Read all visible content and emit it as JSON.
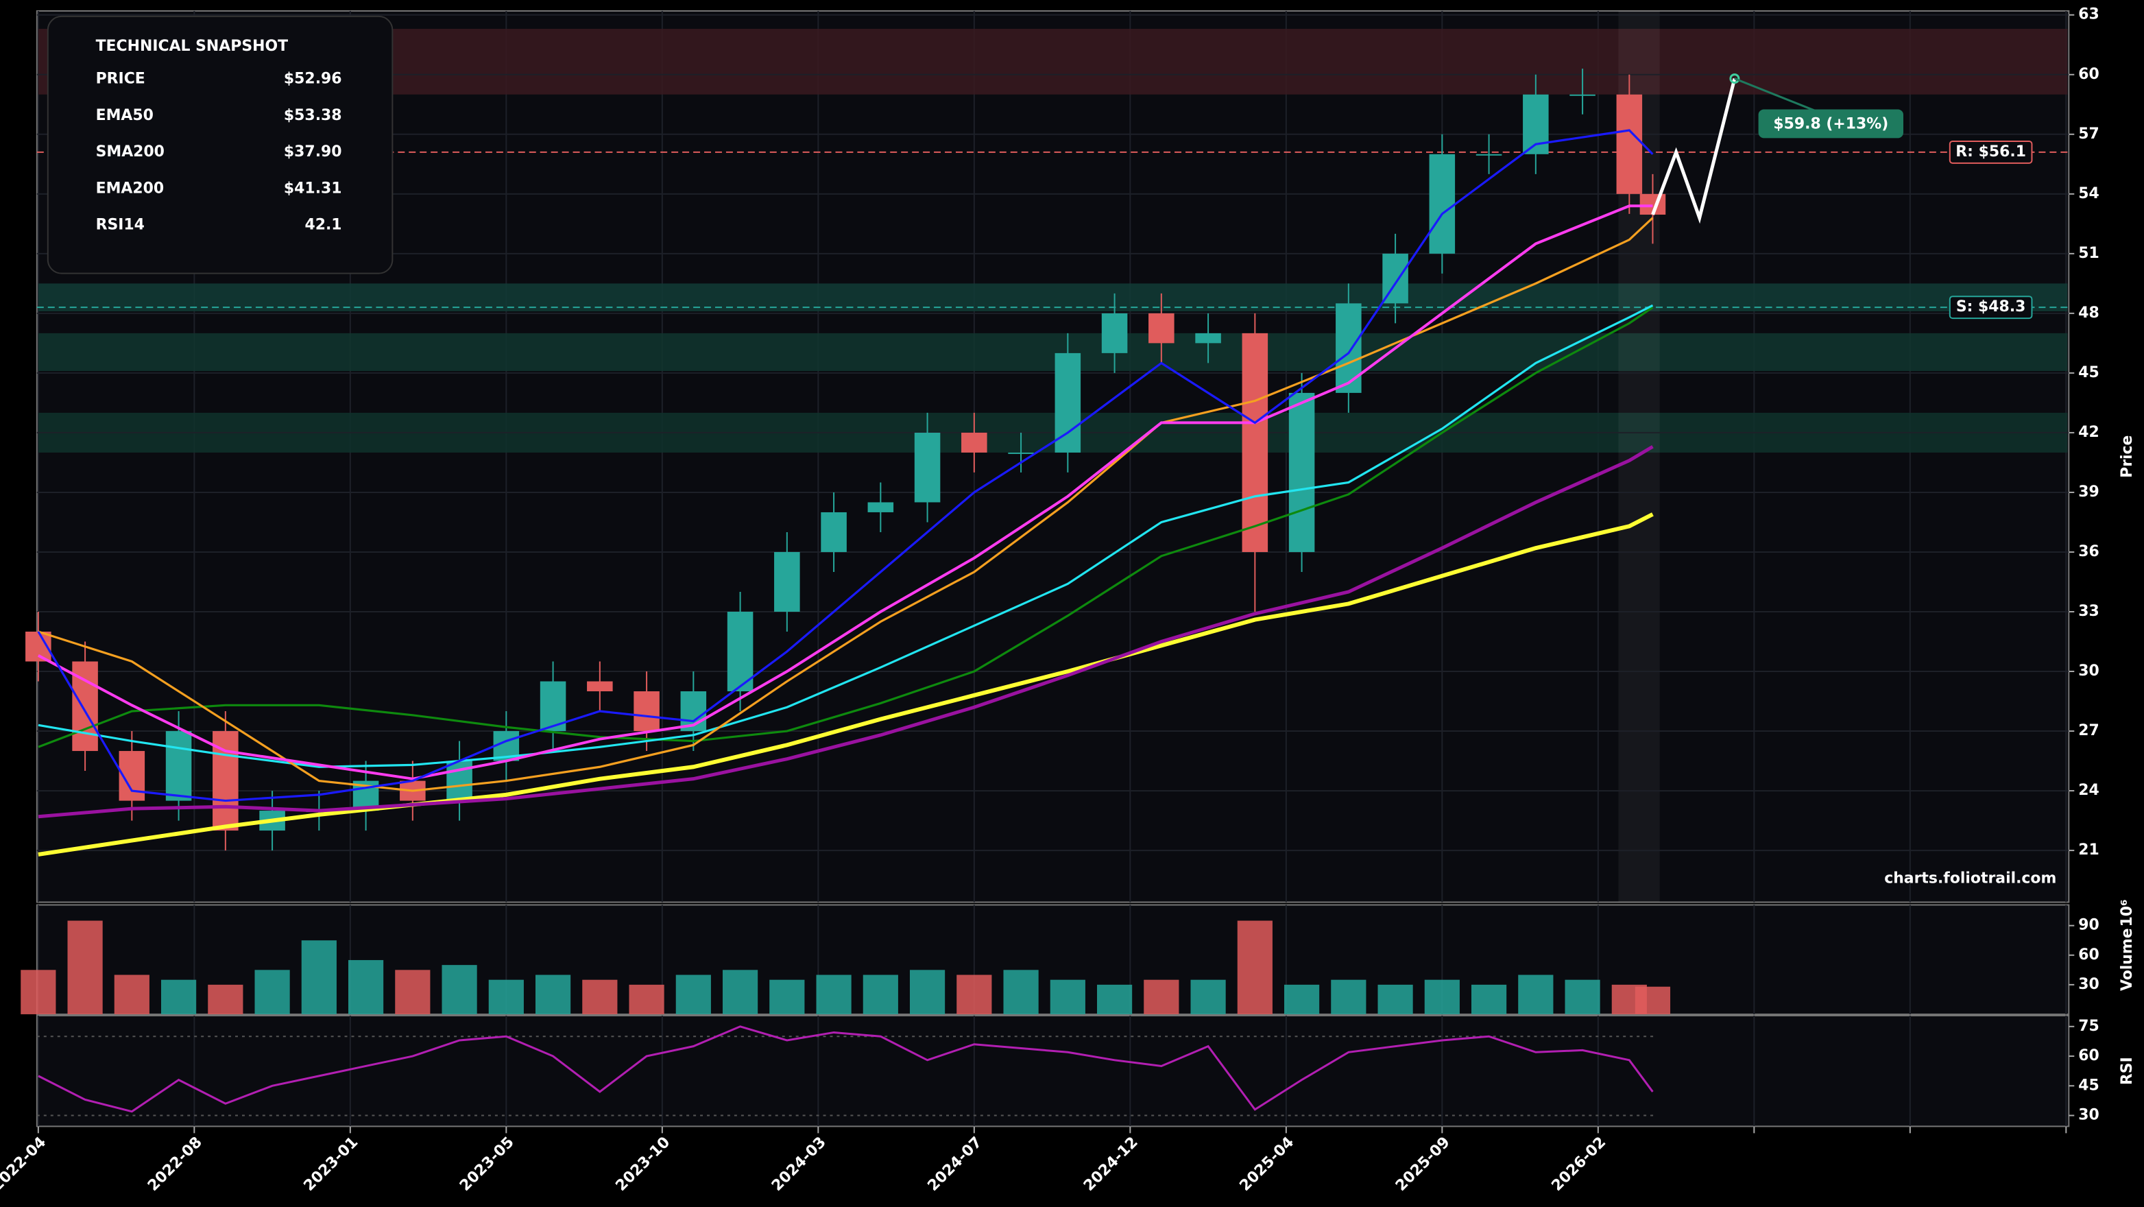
{
  "snapshot": {
    "title": "TECHNICAL SNAPSHOT",
    "rows": [
      {
        "label": "PRICE",
        "value": "$52.96",
        "color": "#ffffff"
      },
      {
        "label": "EMA50",
        "value": "$53.38",
        "color": "#ff3cf0"
      },
      {
        "label": "SMA200",
        "value": "$37.90",
        "color": "#ffff33"
      },
      {
        "label": "EMA200",
        "value": "$41.31",
        "color": "#b21fb2"
      },
      {
        "label": "RSI14",
        "value": "42.1",
        "color": "#b21fb2"
      }
    ]
  },
  "chart_data": [
    {
      "type": "candlestick",
      "ylabel": "Price",
      "watermark": "charts.foliotrail.com",
      "xlim": [
        -0.175,
        260.35
      ],
      "ylim": [
        18.4,
        63.2
      ],
      "yticks": [
        21,
        24,
        27,
        30,
        33,
        36,
        39,
        42,
        45,
        48,
        51,
        54,
        57,
        60,
        63
      ],
      "xticks": [
        0,
        20,
        40,
        60,
        80,
        100,
        120,
        140,
        160,
        180,
        200,
        220,
        240,
        260
      ],
      "up_color": "#26a69a",
      "down_color": "#e05c5c",
      "highlight": [
        202.6,
        207.9
      ],
      "x": [
        0,
        6,
        12,
        18,
        24,
        30,
        36,
        42,
        48,
        54,
        60,
        66,
        72,
        78,
        84,
        90,
        96,
        102,
        108,
        114,
        120,
        126,
        132,
        138,
        144,
        150,
        156,
        162,
        168,
        174,
        180,
        186,
        192,
        198,
        204,
        207
      ],
      "open": [
        32,
        30.5,
        26,
        23.5,
        27,
        22,
        23,
        23,
        24.5,
        23.5,
        25.5,
        27,
        29.5,
        29,
        27,
        29,
        33,
        36,
        38,
        38.5,
        42,
        41,
        41,
        46,
        48,
        46.5,
        47,
        36,
        44,
        48.5,
        51,
        56,
        56,
        59,
        59,
        54
      ],
      "high": [
        33,
        31.5,
        27,
        28,
        28,
        24,
        24,
        25.5,
        25.5,
        26.5,
        28,
        30.5,
        30.5,
        30,
        30,
        34,
        37,
        39,
        39.5,
        43,
        43,
        42,
        47,
        49,
        49,
        48,
        48,
        45,
        49.5,
        52,
        57,
        57,
        60,
        60.3,
        60,
        55
      ],
      "low": [
        29.5,
        25,
        22.5,
        22.5,
        21,
        21,
        22,
        22,
        22.5,
        22.5,
        24.5,
        26,
        28,
        26,
        26,
        28,
        32,
        35,
        37,
        37.5,
        40,
        40,
        40,
        45,
        45.5,
        45.5,
        33,
        35,
        43,
        47.5,
        50,
        55,
        55,
        58,
        53,
        51.5
      ],
      "close": [
        30.5,
        26,
        23.5,
        27,
        22,
        23,
        23,
        24.5,
        23.5,
        25.5,
        27,
        29.5,
        29,
        27,
        29,
        33,
        36,
        38,
        38.5,
        42,
        41,
        41,
        46,
        48,
        46.5,
        47,
        36,
        44,
        48.5,
        51,
        56,
        56,
        59,
        59,
        54,
        52.96
      ],
      "zones": [
        {
          "range": [
            59.0,
            62.3
          ],
          "color": "#3a1a20"
        },
        {
          "range": [
            48.1,
            49.5
          ],
          "color": "#123c36"
        },
        {
          "range": [
            45.1,
            47.0
          ],
          "color": "#10362f"
        },
        {
          "range": [
            41.0,
            43.0
          ],
          "color": "#0f332c"
        }
      ],
      "levels": [
        {
          "value": 56.1,
          "label": "R: $56.1",
          "color": "#e05c5c"
        },
        {
          "value": 48.3,
          "label": "S: $48.3",
          "color": "#26a69a"
        }
      ],
      "lines": [
        {
          "color": "#ffff33",
          "width": 3,
          "x": [
            0,
            12,
            24,
            36,
            48,
            60,
            72,
            84,
            96,
            108,
            120,
            132,
            144,
            156,
            168,
            180,
            192,
            204,
            207
          ],
          "values": [
            20.8,
            21.5,
            22.2,
            22.8,
            23.3,
            23.8,
            24.6,
            25.2,
            26.3,
            27.6,
            28.8,
            30,
            31.3,
            32.6,
            33.4,
            34.8,
            36.2,
            37.3,
            37.9
          ]
        },
        {
          "color": "#9a12a0",
          "width": 2.5,
          "x": [
            0,
            12,
            24,
            36,
            48,
            60,
            72,
            84,
            96,
            108,
            120,
            132,
            144,
            156,
            168,
            180,
            192,
            204,
            207
          ],
          "values": [
            22.7,
            23.1,
            23.2,
            23.0,
            23.3,
            23.6,
            24.1,
            24.6,
            25.6,
            26.8,
            28.2,
            29.8,
            31.5,
            32.9,
            34,
            36.2,
            38.5,
            40.6,
            41.3
          ]
        },
        {
          "color": "#0e8a0e",
          "width": 1.6,
          "x": [
            0,
            12,
            24,
            36,
            48,
            60,
            72,
            84,
            96,
            108,
            120,
            132,
            144,
            156,
            168,
            180,
            192,
            204,
            207
          ],
          "values": [
            26.2,
            28,
            28.3,
            28.3,
            27.8,
            27.2,
            26.7,
            26.5,
            27,
            28.4,
            30,
            32.8,
            35.8,
            37.3,
            38.9,
            42,
            45,
            47.5,
            48.3
          ]
        },
        {
          "color": "#22e5f0",
          "width": 1.6,
          "x": [
            0,
            12,
            24,
            36,
            48,
            60,
            72,
            84,
            96,
            108,
            120,
            132,
            144,
            156,
            168,
            180,
            192,
            204,
            207
          ],
          "values": [
            27.3,
            26.5,
            25.8,
            25.2,
            25.3,
            25.7,
            26.2,
            26.8,
            28.2,
            30.2,
            32.3,
            34.4,
            37.5,
            38.8,
            39.5,
            42.2,
            45.5,
            47.8,
            48.4
          ]
        },
        {
          "color": "#f5a020",
          "width": 1.6,
          "x": [
            0,
            12,
            24,
            36,
            48,
            60,
            72,
            84,
            96,
            108,
            120,
            132,
            144,
            156,
            168,
            180,
            192,
            204,
            207
          ],
          "values": [
            32,
            30.5,
            27.5,
            24.5,
            24,
            24.5,
            25.2,
            26.3,
            29.5,
            32.5,
            35,
            38.5,
            42.5,
            43.6,
            45.5,
            47.5,
            49.5,
            51.7,
            52.8
          ]
        },
        {
          "color": "#ff3cf0",
          "width": 2,
          "x": [
            0,
            12,
            24,
            36,
            48,
            60,
            72,
            84,
            96,
            108,
            120,
            132,
            144,
            156,
            168,
            180,
            192,
            204,
            207
          ],
          "values": [
            30.8,
            28.3,
            26,
            25.3,
            24.6,
            25.5,
            26.6,
            27.3,
            30,
            33,
            35.7,
            38.8,
            42.5,
            42.5,
            44.5,
            48,
            51.5,
            53.4,
            53.4
          ]
        },
        {
          "color": "#1a1aff",
          "width": 1.6,
          "x": [
            0,
            12,
            24,
            36,
            48,
            60,
            72,
            84,
            96,
            108,
            120,
            132,
            144,
            156,
            168,
            180,
            192,
            204,
            207
          ],
          "values": [
            32,
            24,
            23.5,
            23.8,
            24.5,
            26.5,
            28,
            27.5,
            31,
            35,
            39,
            42,
            45.5,
            42.5,
            46,
            53,
            56.5,
            57.2,
            56
          ]
        }
      ],
      "projection": {
        "x": [
          207,
          210,
          213,
          217.5
        ],
        "values": [
          52.96,
          56.1,
          52.8,
          59.8
        ],
        "label": "$59.8 (+13%)"
      }
    },
    {
      "type": "bar",
      "ylabel": "Volume",
      "scale_label": "10⁶",
      "xlim": [
        -0.175,
        260.35
      ],
      "ylim": [
        0,
        111
      ],
      "yticks": [
        30,
        60,
        90
      ],
      "x": [
        0,
        6,
        12,
        18,
        24,
        30,
        36,
        42,
        48,
        54,
        60,
        66,
        72,
        78,
        84,
        90,
        96,
        102,
        108,
        114,
        120,
        126,
        132,
        138,
        144,
        150,
        156,
        162,
        168,
        174,
        180,
        186,
        192,
        198,
        204,
        207
      ],
      "values": [
        45,
        95,
        40,
        35,
        30,
        45,
        75,
        55,
        45,
        50,
        35,
        40,
        35,
        30,
        40,
        45,
        35,
        40,
        40,
        45,
        40,
        45,
        35,
        30,
        35,
        35,
        95,
        30,
        35,
        30,
        35,
        30,
        40,
        35,
        30,
        28
      ],
      "up_color": "#26a69a",
      "down_color": "#e05c5c"
    },
    {
      "type": "line",
      "ylabel": "RSI",
      "xlim": [
        -0.175,
        260.35
      ],
      "ylim": [
        24.5,
        80.5
      ],
      "yticks": [
        30,
        45,
        60,
        75
      ],
      "xticks": [
        {
          "value": 0,
          "label": "2022-04"
        },
        {
          "value": 20,
          "label": "2022-08"
        },
        {
          "value": 40,
          "label": "2023-01"
        },
        {
          "value": 60,
          "label": "2023-05"
        },
        {
          "value": 80,
          "label": "2023-10"
        },
        {
          "value": 100,
          "label": "2024-03"
        },
        {
          "value": 120,
          "label": "2024-07"
        },
        {
          "value": 140,
          "label": "2024-12"
        },
        {
          "value": 160,
          "label": "2025-04"
        },
        {
          "value": 180,
          "label": "2025-09"
        },
        {
          "value": 200,
          "label": "2026-02"
        },
        {
          "value": 220,
          "label": null
        },
        {
          "value": 240,
          "label": null
        },
        {
          "value": 260,
          "label": null
        }
      ],
      "levels": [
        70,
        30
      ],
      "color": "#b21fb2",
      "x": [
        0,
        6,
        12,
        18,
        24,
        30,
        36,
        42,
        48,
        54,
        60,
        66,
        72,
        78,
        84,
        90,
        96,
        102,
        108,
        114,
        120,
        126,
        132,
        138,
        144,
        150,
        156,
        162,
        168,
        174,
        180,
        186,
        192,
        198,
        204,
        207
      ],
      "values": [
        50,
        38,
        32,
        48,
        36,
        45,
        50,
        55,
        60,
        68,
        70,
        60,
        42,
        60,
        65,
        75,
        68,
        72,
        70,
        58,
        66,
        64,
        62,
        58,
        55,
        65,
        33,
        48,
        62,
        65,
        68,
        70,
        62,
        63,
        58,
        42
      ]
    }
  ]
}
